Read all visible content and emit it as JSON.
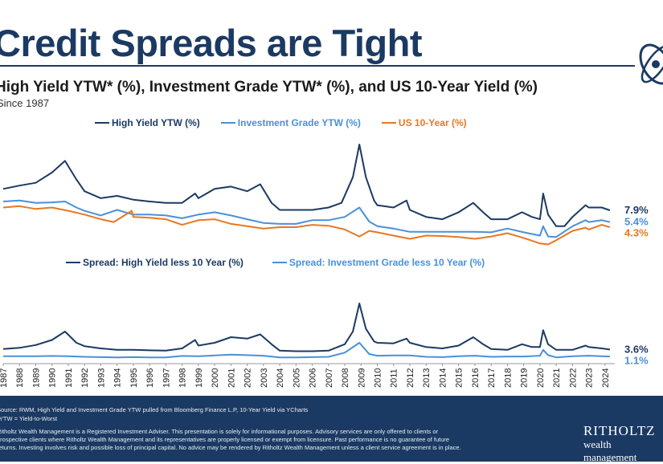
{
  "header": {
    "title": "Credit Spreads are Tight",
    "subtitle": "High Yield YTW* (%), Investment Grade YTW* (%), and US 10-Year Yield (%)",
    "since": "Since 1987"
  },
  "footer": {
    "source": "Source: RWM, High Yield and Investment Grade YTW pulled from Bloomberg Finance L.P, 10-Year Yield via YCharts",
    "ytw_note": "*YTW = Yield-to-Worst",
    "disclaimer_1": "Ritholtz Wealth Management is a Registered Investment Adviser. This presentation is solely for informational purposes. Advisory services are only offered to clients or",
    "disclaimer_2": "prospective clients where Ritholtz Wealth Management and its representatives are properly licensed or exempt from licensure. Past performance is no guarantee of future",
    "disclaimer_3": "returns. Investing involves risk and possible loss of principal capital. No advice may be rendered by Ritholtz Wealth Management unless a client service agreement is in place.",
    "brand": "RITHOLTZ",
    "brand_sub": "wealth management"
  },
  "colors": {
    "hy": "#1b3a63",
    "ig": "#4a90d9",
    "ten": "#e87722",
    "footer": "#1b3a63"
  },
  "chart_data": [
    {
      "type": "line",
      "panel": "yields",
      "series": [
        {
          "name": "High Yield YTW (%)",
          "end_label": "7.9%",
          "color": "#1b3a63",
          "x": [
            1987,
            1988,
            1989,
            1990,
            1990.8,
            1991.5,
            1992,
            1993,
            1994,
            1995,
            1996,
            1997,
            1998,
            1998.8,
            1999,
            2000,
            2001,
            2002,
            2002.8,
            2003.5,
            2004,
            2005,
            2006,
            2007,
            2007.8,
            2008.5,
            2008.9,
            2009.3,
            2009.8,
            2010,
            2011,
            2011.8,
            2012,
            2013,
            2014,
            2015,
            2015.9,
            2016.5,
            2017,
            2018,
            2018.9,
            2019.5,
            2020,
            2020.2,
            2020.5,
            2021,
            2021.5,
            2022,
            2022.8,
            2023,
            2023.8,
            2024.3
          ],
          "y": [
            12.5,
            13.2,
            13.8,
            16.0,
            18.5,
            14.5,
            12.0,
            10.5,
            11.0,
            10.2,
            9.8,
            9.5,
            9.5,
            11.5,
            10.5,
            12.5,
            13.0,
            12.0,
            13.5,
            9.5,
            8.0,
            8.0,
            8.0,
            8.5,
            9.5,
            15.0,
            22.0,
            15.0,
            10.0,
            9.0,
            8.5,
            10.0,
            8.0,
            6.5,
            6.0,
            7.5,
            9.5,
            7.5,
            6.0,
            6.0,
            7.5,
            6.5,
            6.0,
            11.5,
            7.0,
            4.5,
            4.5,
            6.5,
            9.0,
            8.5,
            8.5,
            7.9
          ]
        },
        {
          "name": "Investment Grade YTW (%)",
          "end_label": "5.4%",
          "color": "#4a90d9",
          "x": [
            1987,
            1988,
            1989,
            1990,
            1990.8,
            1991.5,
            1992,
            1993,
            1994,
            1995,
            1996,
            1997,
            1998,
            1999,
            2000,
            2001,
            2002,
            2003,
            2004,
            2005,
            2006,
            2007,
            2008,
            2008.9,
            2009.5,
            2010,
            2011,
            2012,
            2013,
            2014,
            2015,
            2016,
            2017,
            2018,
            2019,
            2020,
            2020.2,
            2020.5,
            2021,
            2022,
            2022.8,
            2023,
            2023.8,
            2024.3
          ],
          "y": [
            9.8,
            10.0,
            9.5,
            9.6,
            9.8,
            8.5,
            7.8,
            6.8,
            8.0,
            7.0,
            7.0,
            6.8,
            6.2,
            7.0,
            7.5,
            6.8,
            6.0,
            5.2,
            5.0,
            5.0,
            5.8,
            5.8,
            6.5,
            8.5,
            5.5,
            4.5,
            4.0,
            3.3,
            3.3,
            3.3,
            3.3,
            3.3,
            3.2,
            4.0,
            3.2,
            2.5,
            4.5,
            2.3,
            2.2,
            4.5,
            5.8,
            5.4,
            5.8,
            5.4
          ]
        },
        {
          "name": "US 10-Year (%)",
          "end_label": "4.3%",
          "color": "#e87722",
          "x": [
            1987,
            1988,
            1989,
            1990,
            1991,
            1992,
            1993,
            1993.8,
            1994.9,
            1995,
            1996,
            1997,
            1998,
            1999,
            2000,
            2001,
            2002,
            2003,
            2004,
            2005,
            2006,
            2007,
            2008,
            2008.9,
            2009.5,
            2010,
            2011,
            2012,
            2013,
            2014,
            2015,
            2016,
            2017,
            2018,
            2019,
            2020,
            2020.5,
            2021,
            2022,
            2022.8,
            2023,
            2023.8,
            2024.3
          ],
          "y": [
            8.5,
            8.8,
            8.2,
            8.5,
            7.8,
            7.0,
            6.0,
            5.4,
            7.8,
            6.5,
            6.3,
            6.0,
            4.8,
            5.8,
            6.0,
            5.0,
            4.5,
            4.0,
            4.3,
            4.3,
            4.8,
            4.6,
            3.8,
            2.3,
            3.5,
            3.2,
            2.5,
            1.8,
            2.5,
            2.4,
            2.2,
            1.8,
            2.3,
            3.0,
            2.0,
            0.8,
            0.6,
            1.5,
            3.5,
            4.2,
            3.8,
            4.8,
            4.3
          ]
        }
      ]
    },
    {
      "type": "line",
      "panel": "spreads",
      "series": [
        {
          "name": "Spread: High Yield less 10 Year (%)",
          "end_label": "3.6%",
          "color": "#1b3a63",
          "x": [
            1987,
            1988,
            1989,
            1990,
            1990.8,
            1991.5,
            1992,
            1993,
            1994,
            1995,
            1996,
            1997,
            1998,
            1998.8,
            1999,
            2000,
            2001,
            2002,
            2002.8,
            2003.5,
            2004,
            2005,
            2006,
            2007,
            2008,
            2008.5,
            2008.9,
            2009.3,
            2009.8,
            2010,
            2011,
            2011.8,
            2012,
            2013,
            2014,
            2015,
            2015.9,
            2016.5,
            2017,
            2018,
            2018.9,
            2019.5,
            2020,
            2020.2,
            2020.5,
            2021,
            2022,
            2022.8,
            2023,
            2023.8,
            2024.3
          ],
          "y": [
            3.8,
            4.2,
            5.2,
            7.0,
            10.0,
            6.0,
            4.8,
            4.0,
            3.5,
            3.5,
            3.3,
            3.2,
            4.0,
            7.0,
            5.0,
            6.0,
            8.0,
            7.5,
            9.0,
            5.5,
            3.2,
            3.0,
            3.0,
            3.2,
            5.5,
            10.0,
            20.0,
            11.0,
            6.5,
            6.0,
            5.8,
            7.5,
            6.0,
            4.5,
            4.0,
            5.0,
            8.0,
            5.5,
            3.8,
            3.5,
            5.5,
            4.5,
            4.5,
            10.5,
            5.5,
            3.5,
            3.5,
            5.0,
            4.5,
            4.0,
            3.6
          ]
        },
        {
          "name": "Spread: Investment Grade less 10 Year (%)",
          "end_label": "1.1%",
          "color": "#4a90d9",
          "x": [
            1987,
            1988,
            1989,
            1990,
            1991,
            1992,
            1993,
            1994,
            1995,
            1996,
            1997,
            1998,
            1999,
            2000,
            2001,
            2002,
            2003,
            2004,
            2005,
            2006,
            2007,
            2008,
            2008.9,
            2009.5,
            2010,
            2011,
            2012,
            2013,
            2014,
            2015,
            2016,
            2017,
            2018,
            2019,
            2020,
            2020.2,
            2020.5,
            2021,
            2022,
            2023,
            2024.3
          ],
          "y": [
            1.2,
            1.2,
            1.2,
            1.3,
            1.2,
            1.0,
            0.9,
            0.8,
            0.9,
            0.8,
            0.8,
            1.3,
            1.2,
            1.5,
            1.8,
            1.6,
            1.4,
            0.8,
            0.8,
            0.9,
            1.0,
            2.5,
            6.0,
            2.0,
            1.4,
            1.5,
            1.5,
            1.0,
            0.9,
            1.2,
            1.4,
            1.0,
            1.1,
            1.1,
            1.4,
            3.5,
            1.6,
            0.8,
            1.2,
            1.4,
            1.1
          ]
        }
      ]
    }
  ],
  "x_axis": {
    "ticks": [
      "1987",
      "1988",
      "1989",
      "1990",
      "1991",
      "1992",
      "1993",
      "1994",
      "1995",
      "1996",
      "1997",
      "1998",
      "1999",
      "2000",
      "2001",
      "2002",
      "2003",
      "2004",
      "2005",
      "2006",
      "2007",
      "2008",
      "2009",
      "2010",
      "2011",
      "2012",
      "2013",
      "2014",
      "2015",
      "2016",
      "2017",
      "2018",
      "2019",
      "2020",
      "2021",
      "2022",
      "2023",
      "2024"
    ]
  }
}
